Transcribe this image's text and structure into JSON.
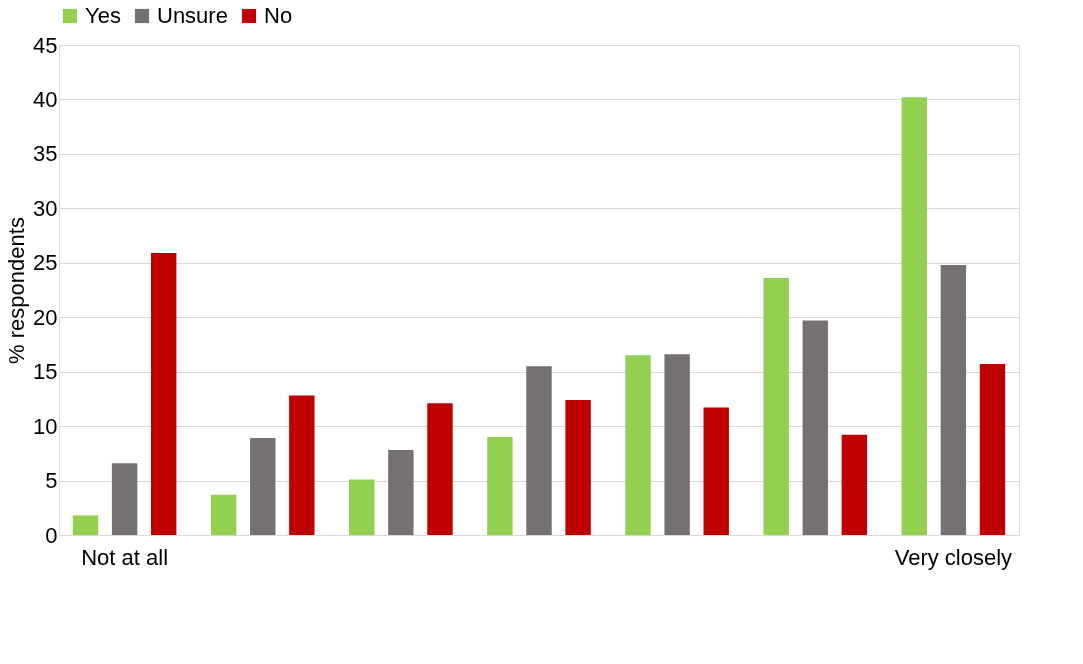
{
  "chart_data": {
    "type": "bar",
    "ylabel": "% respondents",
    "categories": [
      "Not at all",
      null,
      null,
      null,
      null,
      null,
      "Very closely"
    ],
    "series": [
      {
        "name": "Yes",
        "color": "#92d050",
        "values": [
          1.8,
          3.7,
          5.1,
          9.0,
          16.5,
          23.6,
          40.2
        ]
      },
      {
        "name": "Unsure",
        "color": "#767171",
        "values": [
          6.6,
          8.9,
          7.8,
          15.5,
          16.6,
          19.7,
          24.8
        ]
      },
      {
        "name": "No",
        "color": "#c00000",
        "values": [
          25.9,
          12.8,
          12.1,
          12.4,
          11.7,
          9.2,
          15.7
        ]
      }
    ],
    "ylim": [
      0,
      45
    ],
    "yticks": [
      0,
      5,
      10,
      15,
      20,
      25,
      30,
      35,
      40,
      45
    ],
    "grid": "y",
    "legend": "top"
  }
}
